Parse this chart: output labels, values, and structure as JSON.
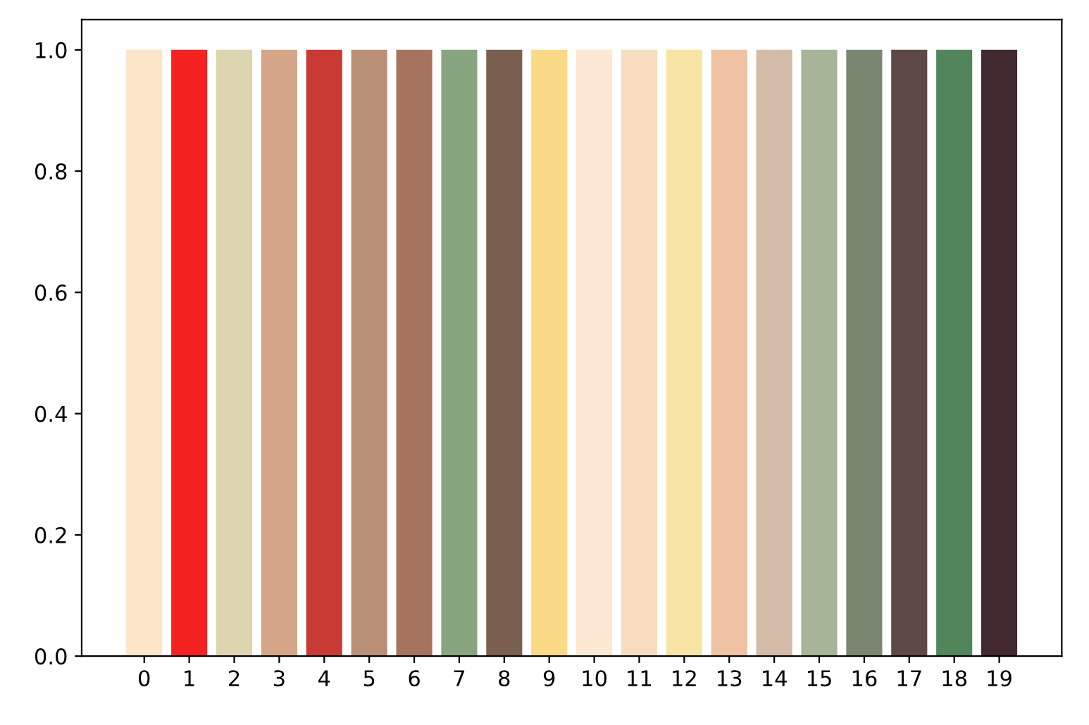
{
  "chart_data": {
    "type": "bar",
    "categories": [
      "0",
      "1",
      "2",
      "3",
      "4",
      "5",
      "6",
      "7",
      "8",
      "9",
      "10",
      "11",
      "12",
      "13",
      "14",
      "15",
      "16",
      "17",
      "18",
      "19"
    ],
    "values": [
      1.0,
      1.0,
      1.0,
      1.0,
      1.0,
      1.0,
      1.0,
      1.0,
      1.0,
      1.0,
      1.0,
      1.0,
      1.0,
      1.0,
      1.0,
      1.0,
      1.0,
      1.0,
      1.0,
      1.0
    ],
    "colors": [
      "#fce5c8",
      "#f42321",
      "#ddd4b0",
      "#d4a587",
      "#c93a34",
      "#b98f76",
      "#a6745e",
      "#87a67f",
      "#7a5f50",
      "#fbd986",
      "#fde8d3",
      "#f8dcbf",
      "#f8e4a5",
      "#efc2a4",
      "#d3bba7",
      "#a7b497",
      "#7a8670",
      "#5d4845",
      "#52855c",
      "#41292f"
    ],
    "ylim": [
      0,
      1.05
    ],
    "yticks": [
      {
        "value": 0,
        "label": "0.0"
      },
      0.2,
      0.4,
      0.6,
      0.8,
      {
        "value": 1,
        "label": "1.0"
      }
    ],
    "grid": false,
    "legend": false
  }
}
